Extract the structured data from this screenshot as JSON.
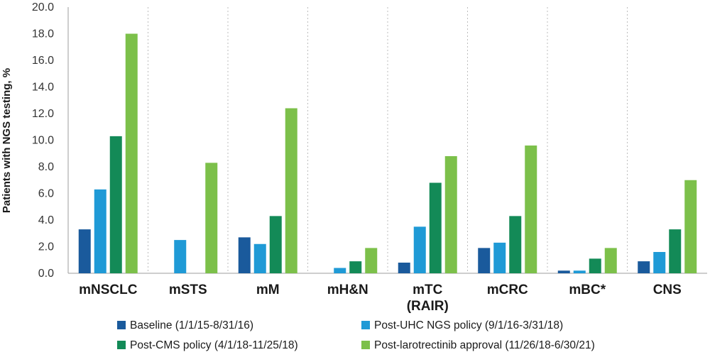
{
  "chart_data": {
    "type": "bar",
    "title": "",
    "xlabel": "",
    "ylabel": "Patients with NGS testing, %",
    "ylim": [
      0,
      20
    ],
    "yticks": [
      "0.0",
      "2.0",
      "4.0",
      "6.0",
      "8.0",
      "10.0",
      "12.0",
      "14.0",
      "16.0",
      "18.0",
      "20.0"
    ],
    "grid": "vertical dotted separators between categories",
    "legend_position": "bottom",
    "categories": [
      {
        "lines": [
          "mNSCLC"
        ]
      },
      {
        "lines": [
          "mSTS"
        ]
      },
      {
        "lines": [
          "mM"
        ]
      },
      {
        "lines": [
          "mH&N"
        ]
      },
      {
        "lines": [
          "mTC",
          "(RAIR)"
        ]
      },
      {
        "lines": [
          "mCRC"
        ]
      },
      {
        "lines": [
          "mBC*"
        ]
      },
      {
        "lines": [
          "CNS"
        ]
      }
    ],
    "series": [
      {
        "name": "Baseline (1/1/15-8/31/16)",
        "color": "#1a5a9c",
        "values": [
          3.3,
          0,
          2.7,
          0,
          0.8,
          1.9,
          0.2,
          0.9
        ]
      },
      {
        "name": "Post-UHC NGS policy (9/1/16-3/31/18)",
        "color": "#1f9ad6",
        "values": [
          6.3,
          2.5,
          2.2,
          0.4,
          3.5,
          2.3,
          0.2,
          1.6
        ]
      },
      {
        "name": "Post-CMS policy (4/1/18-11/25/18)",
        "color": "#138a57",
        "values": [
          10.3,
          0,
          4.3,
          0.9,
          6.8,
          4.3,
          1.1,
          3.3
        ]
      },
      {
        "name": "Post-larotrectinib approval (11/26/18-6/30/21)",
        "color": "#7cc04a",
        "values": [
          18.0,
          8.3,
          12.4,
          1.9,
          8.8,
          9.6,
          1.9,
          7.0
        ]
      }
    ]
  }
}
